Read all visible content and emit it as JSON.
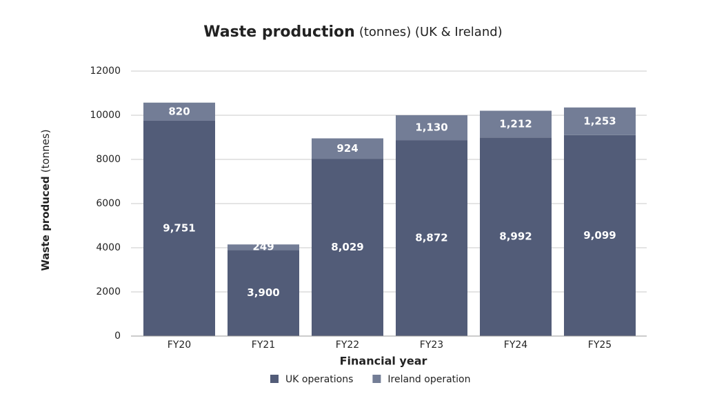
{
  "chart_data": {
    "type": "stacked_bar",
    "title": "Waste production",
    "subtitle": "(tonnes) (UK & Ireland)",
    "y_label": "Waste produced",
    "y_label_unit": "(tonnes)",
    "x_label": "Financial year",
    "categories": [
      "FY20",
      "FY21",
      "FY22",
      "FY23",
      "FY24",
      "FY25"
    ],
    "series": [
      {
        "name": "UK operations",
        "color": "#525c78",
        "values": [
          9751,
          3900,
          8029,
          8872,
          8992,
          9099
        ],
        "value_labels": [
          "9,751",
          "3,900",
          "8,029",
          "8,872",
          "8,992",
          "9,099"
        ]
      },
      {
        "name": "Ireland operation",
        "color": "#737d96",
        "values": [
          820,
          249,
          924,
          1130,
          1212,
          1253
        ],
        "value_labels": [
          "820",
          "249",
          "924",
          "1,130",
          "1,212",
          "1,253"
        ]
      }
    ],
    "ylim": [
      0,
      12000
    ],
    "yticks": [
      0,
      2000,
      4000,
      6000,
      8000,
      10000,
      12000
    ],
    "grid": true,
    "legend": "bottom"
  }
}
